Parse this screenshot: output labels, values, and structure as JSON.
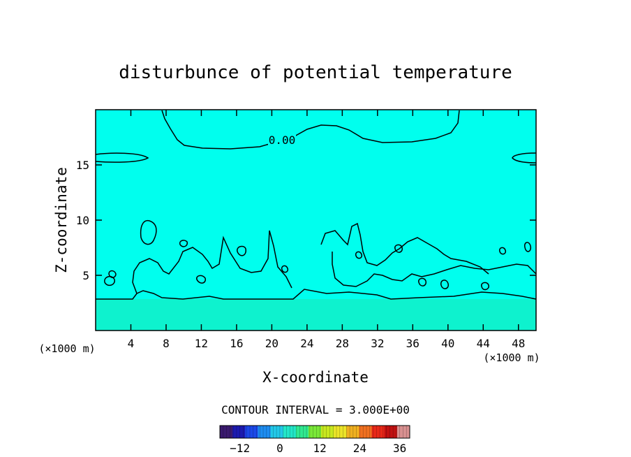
{
  "chart_data": {
    "type": "contour",
    "title": "disturbunce of potential temperature",
    "xlabel": "X-coordinate",
    "ylabel": "Z-coordinate",
    "x_unit": "(×1000 m)",
    "y_unit": "(×1000 m)",
    "xlim": [
      0,
      50
    ],
    "ylim": [
      0,
      20
    ],
    "x_ticks": [
      4,
      8,
      12,
      16,
      20,
      24,
      28,
      32,
      36,
      40,
      44,
      48
    ],
    "y_ticks": [
      5,
      10,
      15
    ],
    "contour_label": "0.00",
    "contour_interval_text": "CONTOUR INTERVAL = 3.000E+00",
    "colorbar": {
      "ticks": [
        -12,
        0,
        12,
        24,
        36
      ],
      "range": [
        -18,
        39
      ],
      "colors": [
        "#3a1a6e",
        "#1c1ab0",
        "#1c48e8",
        "#1e8cf0",
        "#22c8e8",
        "#22e6c8",
        "#30e890",
        "#7ae838",
        "#c8e820",
        "#ece428",
        "#f0b020",
        "#f07020",
        "#e82818",
        "#c01010",
        "#d89090"
      ]
    },
    "fill_colors": {
      "background": "#00ffee",
      "lower_layer": "#10f0c8"
    },
    "grid": false
  }
}
